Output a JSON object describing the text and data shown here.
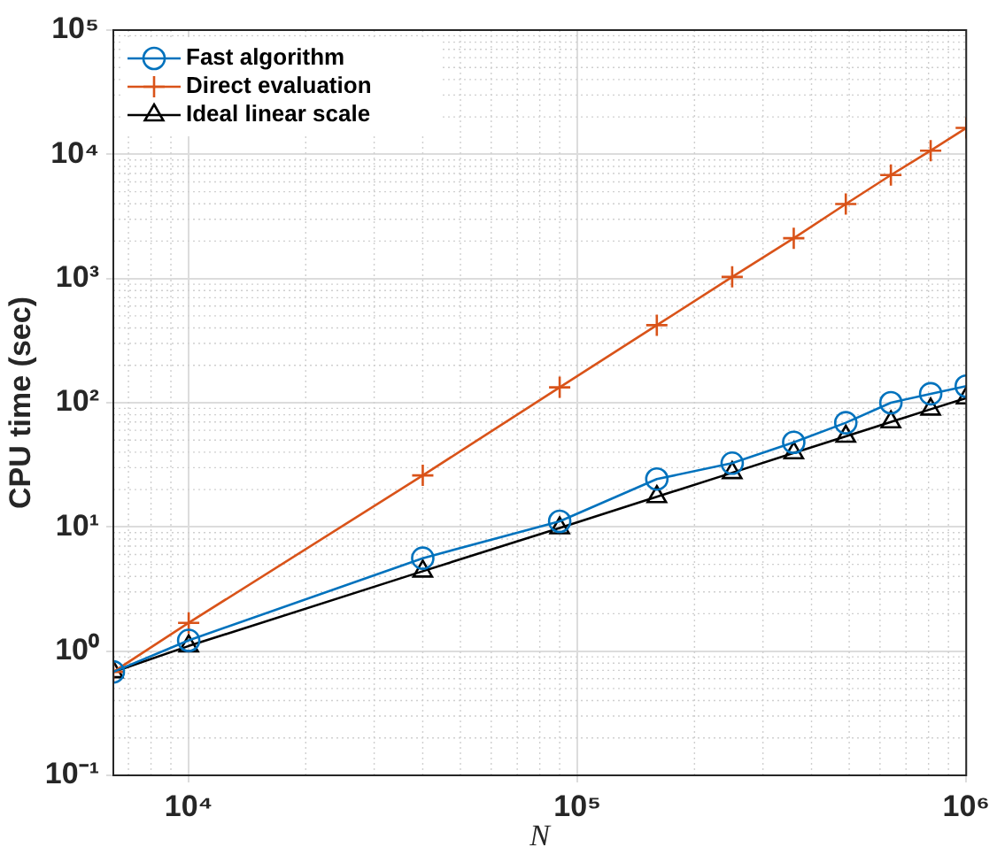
{
  "chart_data": {
    "type": "line",
    "xlabel": "N",
    "ylabel": "CPU time (sec)",
    "log": "xy",
    "grid": true,
    "legend": "top left",
    "xlim": [
      6400,
      1000000
    ],
    "ylim": [
      0.1,
      100000
    ],
    "xticks": [
      {
        "value": 10000,
        "label": "10⁴"
      },
      {
        "value": 100000,
        "label": "10⁵"
      },
      {
        "value": 1000000,
        "label": "10⁶"
      }
    ],
    "yticks": [
      {
        "value": 0.1,
        "label": "10⁻¹"
      },
      {
        "value": 1,
        "label": "10⁰"
      },
      {
        "value": 10,
        "label": "10¹"
      },
      {
        "value": 100,
        "label": "10²"
      },
      {
        "value": 1000,
        "label": "10³"
      },
      {
        "value": 10000,
        "label": "10⁴"
      },
      {
        "value": 100000,
        "label": "10⁵"
      }
    ],
    "x": [
      6400,
      10000,
      40000,
      90000,
      160000,
      250000,
      360000,
      490000,
      640000,
      810000,
      1000000
    ],
    "series": [
      {
        "name": "Fast algorithm",
        "color": "#0072bd",
        "marker": "circle",
        "values": [
          0.68,
          1.22,
          5.6,
          11.1,
          24.3,
          32.6,
          48,
          69,
          100,
          118,
          136
        ]
      },
      {
        "name": "Direct evaluation",
        "color": "#d95319",
        "marker": "cross",
        "values": [
          0.68,
          1.69,
          26,
          133,
          421,
          1030,
          2110,
          3980,
          6810,
          10700,
          16300
        ]
      },
      {
        "name": "Ideal linear scale",
        "color": "#000000",
        "marker": "triangle",
        "values": [
          0.68,
          1.1,
          4.4,
          9.8,
          17.5,
          27.3,
          39.4,
          53.6,
          70,
          88.6,
          109
        ]
      }
    ]
  }
}
